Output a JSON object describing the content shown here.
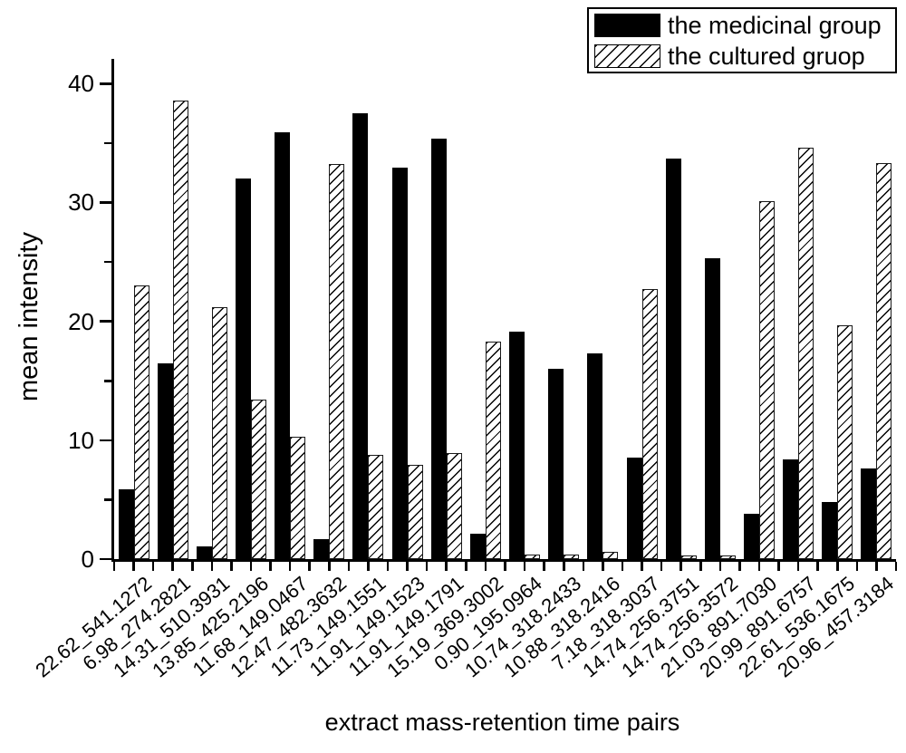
{
  "chart_data": {
    "type": "bar",
    "title": "",
    "xlabel": "extract mass-retention time pairs",
    "ylabel": "mean intensity",
    "ylim": [
      0,
      42
    ],
    "yticks_major": [
      0,
      10,
      20,
      30,
      40
    ],
    "yticks_minor": [
      5,
      15,
      25,
      35
    ],
    "grid": false,
    "legend_position": "top-right",
    "bar_style_note": "series 1 solid black fill, series 2 white with diagonal hatch",
    "categories": [
      "22.62_541.1272",
      "6.98_274.2821",
      "14.31_510.3931",
      "13.85_425.2196",
      "11.68_149.0467",
      "12.47_482.3632",
      "11.73_149.1551",
      "11.91_149.1523",
      "11.91_149.1791",
      "15.19_369.3002",
      "0.90_195.0964",
      "10.74_318.2433",
      "10.88_318.2416",
      "7.18_318.3037",
      "14.74_256.3751",
      "14.74_256.3572",
      "21.03_891.7030",
      "20.99_891.6757",
      "22.61_536.1675",
      "20.96_457.3184"
    ],
    "series": [
      {
        "name": "the medicinal group",
        "pattern": "solid-black",
        "values": [
          5.9,
          16.5,
          1.1,
          32.0,
          35.9,
          1.7,
          37.5,
          32.9,
          35.4,
          2.1,
          19.1,
          16.0,
          17.3,
          8.5,
          33.7,
          25.3,
          3.8,
          8.4,
          4.8,
          7.6
        ]
      },
      {
        "name": "the cultured gruop",
        "pattern": "diagonal-hatch",
        "values": [
          23.0,
          38.6,
          21.2,
          13.4,
          10.3,
          33.2,
          8.8,
          7.9,
          8.9,
          18.3,
          0.4,
          0.4,
          0.6,
          22.7,
          0.2,
          0.2,
          30.1,
          34.6,
          19.7,
          33.3
        ]
      }
    ]
  },
  "colors": {
    "background": "#ffffff",
    "bar_fill": "#000000",
    "bar_outline": "#000000",
    "text": "#000000"
  }
}
